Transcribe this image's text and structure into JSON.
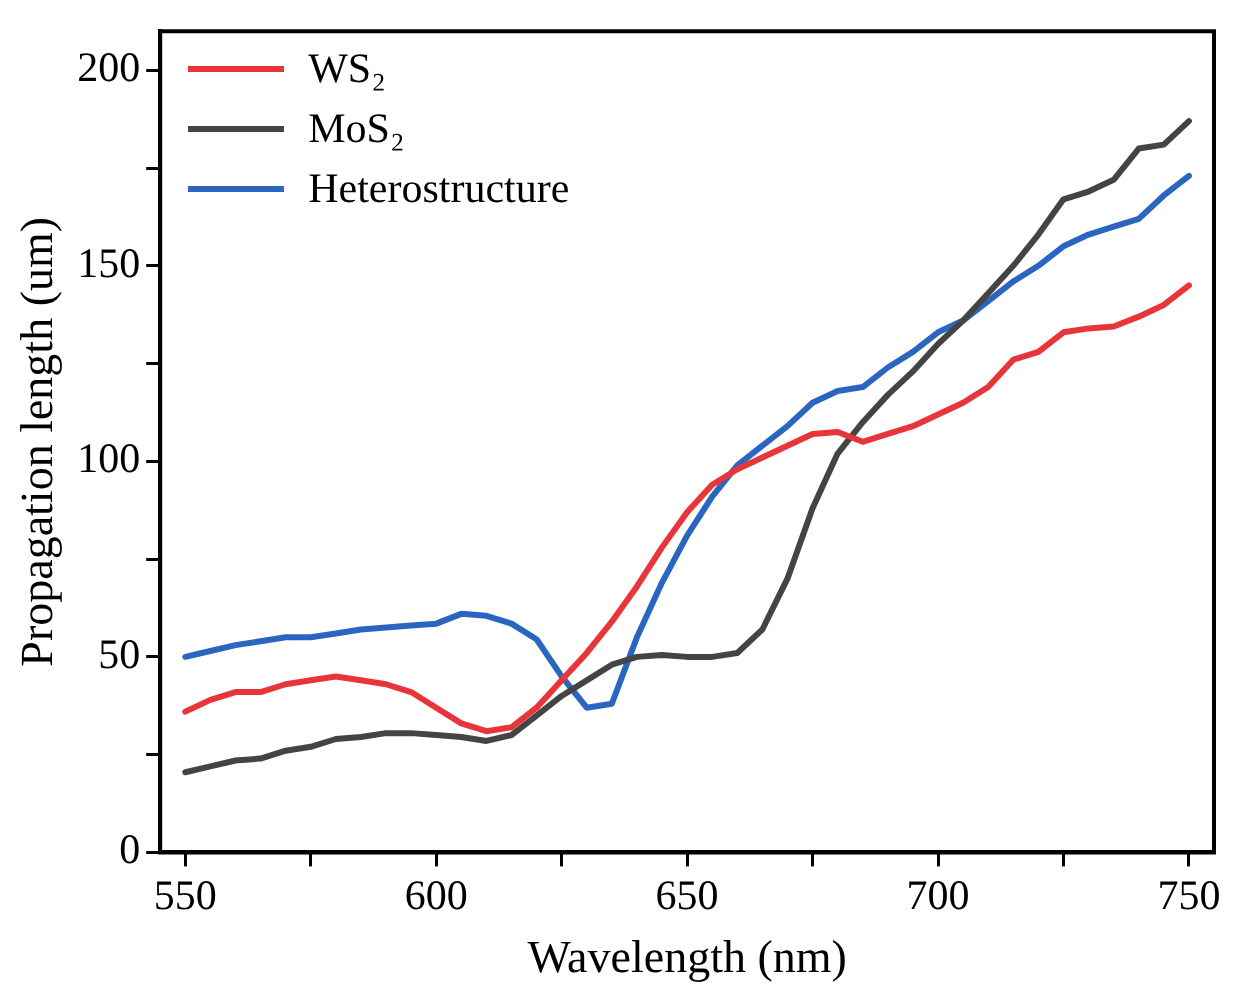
{
  "chart_data": {
    "type": "line",
    "xlabel": "Wavelength (nm)",
    "ylabel": "Propagation length (um)",
    "x": [
      550,
      555,
      560,
      565,
      570,
      575,
      580,
      585,
      590,
      595,
      600,
      605,
      610,
      615,
      620,
      625,
      630,
      635,
      640,
      645,
      650,
      655,
      660,
      665,
      670,
      675,
      680,
      685,
      690,
      695,
      700,
      705,
      710,
      715,
      720,
      725,
      730,
      735,
      740,
      745,
      750
    ],
    "series": [
      {
        "name": "WS₂",
        "color": "#e8353a",
        "values": [
          36,
          39,
          41,
          41,
          43,
          44,
          45,
          44,
          43,
          41,
          37,
          33,
          31,
          32,
          37,
          44,
          51,
          59,
          68,
          78,
          87,
          94,
          98,
          101,
          104,
          107,
          107.5,
          105,
          107,
          109,
          112,
          115,
          119,
          126,
          128,
          133,
          134,
          134.5,
          137,
          140,
          145
        ]
      },
      {
        "name": "MoS₂",
        "color": "#444444",
        "values": [
          20.5,
          22,
          23.5,
          24,
          26,
          27,
          29,
          29.5,
          30.5,
          30.5,
          30,
          29.5,
          28.5,
          30,
          35,
          40,
          44,
          48,
          50,
          50.5,
          50,
          50,
          51,
          57,
          70,
          88,
          102,
          110,
          117,
          123,
          130,
          136,
          143,
          150,
          158,
          167,
          169,
          172,
          180,
          181,
          187
        ]
      },
      {
        "name": "Heterostructure",
        "color": "#2a66c0",
        "values": [
          50,
          51.5,
          53,
          54,
          55,
          55,
          56,
          57,
          57.5,
          58,
          58.5,
          61,
          60.5,
          58.5,
          54.5,
          45,
          37,
          38,
          55,
          69,
          81,
          91,
          99,
          104,
          109,
          115,
          118,
          119,
          124,
          128,
          133,
          136,
          141,
          146,
          150,
          155,
          158,
          160,
          162,
          168,
          173
        ]
      }
    ],
    "xlim": [
      545,
      755
    ],
    "ylim": [
      0,
      210
    ],
    "xticks": [
      550,
      {
        "value": 575,
        "label": null
      },
      600,
      {
        "value": 625,
        "label": null
      },
      650,
      {
        "value": 675,
        "label": null
      },
      700,
      {
        "value": 725,
        "label": null
      },
      750
    ],
    "yticks": [
      0,
      {
        "value": 25,
        "label": null
      },
      50,
      {
        "value": 75,
        "label": null
      },
      100,
      {
        "value": 125,
        "label": null
      },
      150,
      {
        "value": 175,
        "label": null
      },
      200
    ],
    "grid": false,
    "legend": "top left",
    "marker": "none",
    "line_style": "solid"
  }
}
